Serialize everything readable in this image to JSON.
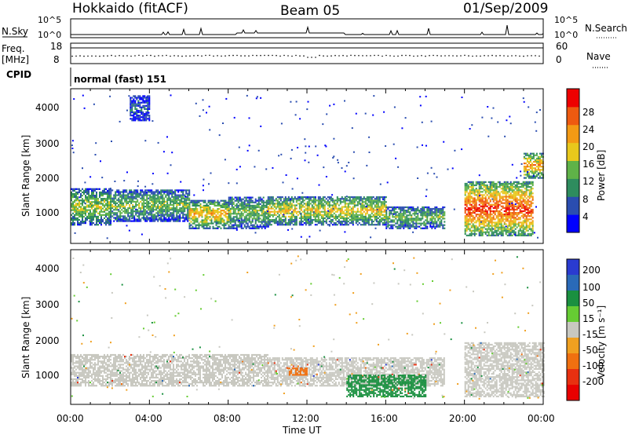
{
  "header": {
    "station": "Hokkaido (fitACF)",
    "beam": "Beam 05",
    "date": "01/Sep/2009"
  },
  "side_labels": {
    "nsky": "N.Sky",
    "freq_line1": "Freq.",
    "freq_line2": "[MHz]",
    "cpid": "CPID",
    "nsearch": "N.Search",
    "nave": "Nave"
  },
  "cpid_text": "normal (fast) 151",
  "xaxis_label": "Time UT",
  "colors": {
    "power": [
      "#0000ff",
      "#2a4db0",
      "#2e8c5e",
      "#5fb248",
      "#e8c81c",
      "#f39a14",
      "#ee5a10",
      "#ee0000"
    ],
    "velocity": [
      "#2a3bd0",
      "#2a6ab8",
      "#1a9040",
      "#66cc33",
      "#c8c8c0",
      "#f0a020",
      "#f07010",
      "#e83010",
      "#e80000"
    ],
    "ground_scatter": "#c8c8c0"
  },
  "chart_data": [
    {
      "type": "line",
      "panel": "N.Sky / N.Search",
      "ytick_labels": [
        "10^5",
        "10^0"
      ],
      "right_ytick_labels": [
        "10^5",
        "10^0"
      ],
      "x": [
        "00:00",
        "04:00",
        "08:00",
        "12:00",
        "16:00",
        "20:00",
        "00:00"
      ],
      "series": [
        {
          "name": "N.Sky",
          "values": [
            1,
            1,
            1.5,
            3,
            2,
            2.5,
            1
          ]
        }
      ]
    },
    {
      "type": "line",
      "panel": "Freq / Nave",
      "left_ylim": [
        8,
        18
      ],
      "left_ytick_labels": [
        "18",
        "8"
      ],
      "right_ylim": [
        0,
        60
      ],
      "right_ytick_labels": [
        "60",
        "0"
      ],
      "series": [
        {
          "name": "Freq.",
          "values": [
            11,
            11,
            11,
            11,
            11,
            11,
            11
          ]
        }
      ]
    },
    {
      "type": "heatmap",
      "panel": "Power",
      "ylabel": "Slant Range [km]",
      "ylim": [
        200,
        4500
      ],
      "yticks": [
        "1000",
        "2000",
        "3000",
        "4000"
      ],
      "colorbar_label": "Power [dB]",
      "colorbar_ticks": [
        "4",
        "8",
        "12",
        "16",
        "20",
        "24",
        "28"
      ],
      "colorbar_range": [
        0,
        32
      ],
      "echo_regions": [
        {
          "t_start": "00:00",
          "t_end": "02:00",
          "range_km": [
            700,
            1700
          ],
          "power_db": 14
        },
        {
          "t_start": "02:00",
          "t_end": "06:00",
          "range_km": [
            800,
            1700
          ],
          "power_db": 12
        },
        {
          "t_start": "03:00",
          "t_end": "04:00",
          "range_km": [
            3600,
            4300
          ],
          "power_db": 6
        },
        {
          "t_start": "06:00",
          "t_end": "08:00",
          "range_km": [
            600,
            1400
          ],
          "power_db": 18
        },
        {
          "t_start": "08:00",
          "t_end": "10:00",
          "range_km": [
            600,
            1500
          ],
          "power_db": 12
        },
        {
          "t_start": "10:00",
          "t_end": "16:00",
          "range_km": [
            700,
            1500
          ],
          "power_db": 16
        },
        {
          "t_start": "16:00",
          "t_end": "19:00",
          "range_km": [
            600,
            1200
          ],
          "power_db": 12
        },
        {
          "t_start": "20:00",
          "t_end": "23:30",
          "range_km": [
            400,
            1900
          ],
          "power_db": 24
        },
        {
          "t_start": "23:00",
          "t_end": "24:00",
          "range_km": [
            2000,
            2700
          ],
          "power_db": 20
        }
      ]
    },
    {
      "type": "heatmap",
      "panel": "Velocity",
      "ylabel": "Slant Range [km]",
      "ylim": [
        200,
        4500
      ],
      "yticks": [
        "1000",
        "2000",
        "3000",
        "4000"
      ],
      "colorbar_label": "Velocity [m s⁻¹]",
      "colorbar_ticks": [
        "200",
        "100",
        "50",
        "15",
        "-15",
        "-50",
        "-100",
        "-200"
      ],
      "echo_regions": [
        {
          "t_start": "00:00",
          "t_end": "10:00",
          "range_km": [
            700,
            1600
          ],
          "velocity_ms": 0
        },
        {
          "t_start": "10:00",
          "t_end": "19:00",
          "range_km": [
            700,
            1500
          ],
          "velocity_ms": 0
        },
        {
          "t_start": "14:00",
          "t_end": "18:00",
          "range_km": [
            400,
            1000
          ],
          "velocity_ms": 40
        },
        {
          "t_start": "20:00",
          "t_end": "24:00",
          "range_km": [
            400,
            1900
          ],
          "velocity_ms": 0
        },
        {
          "t_start": "11:00",
          "t_end": "12:00",
          "range_km": [
            1000,
            1200
          ],
          "velocity_ms": -60
        }
      ]
    }
  ],
  "xticks": [
    "00:00",
    "04:00",
    "08:00",
    "12:00",
    "16:00",
    "20:00",
    "00:00"
  ]
}
